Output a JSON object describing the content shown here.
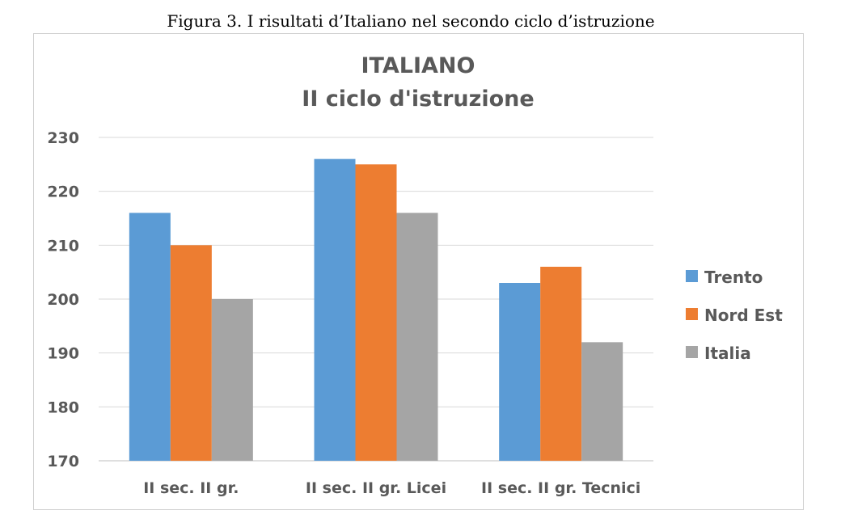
{
  "caption": "Figura 3. I risultati d’Italiano nel secondo ciclo d’istruzione",
  "chart_data": {
    "type": "bar",
    "title": [
      "ITALIANO",
      "II ciclo d'istruzione"
    ],
    "categories": [
      "II sec. II gr.",
      "II sec. II gr. Licei",
      "II sec. II gr. Tecnici"
    ],
    "series": [
      {
        "name": "Trento",
        "color": "#5B9BD5",
        "values": [
          216,
          226,
          203
        ]
      },
      {
        "name": "Nord Est",
        "color": "#ED7D31",
        "values": [
          210,
          225,
          206
        ]
      },
      {
        "name": "Italia",
        "color": "#A5A5A5",
        "values": [
          200,
          216,
          192
        ]
      }
    ],
    "yticks": [
      "230",
      "220",
      "210",
      "200",
      "190",
      "180",
      "170"
    ],
    "ylim": [
      170,
      230
    ],
    "ystep": 10,
    "grid": true,
    "legend_position": "right"
  }
}
